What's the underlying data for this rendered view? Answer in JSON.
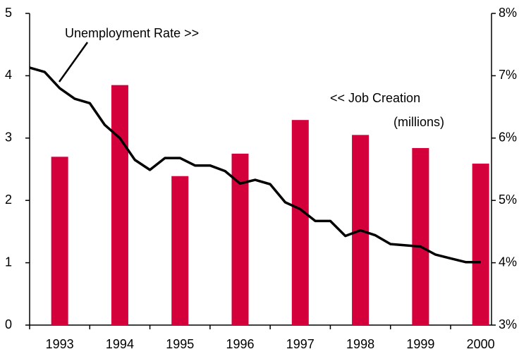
{
  "chart_data": {
    "type": "bar",
    "categories": [
      "1993",
      "1994",
      "1995",
      "1996",
      "1997",
      "1998",
      "1999",
      "2000"
    ],
    "xlim": [
      1993,
      2000.68
    ],
    "ylim": [
      0,
      5
    ],
    "yticks": [
      0,
      1,
      2,
      3,
      4,
      5
    ],
    "y2lim": [
      3,
      8
    ],
    "y2ticks": [
      {
        "value": 3,
        "label": "3%"
      },
      {
        "value": 4,
        "label": "4%"
      },
      {
        "value": 5,
        "label": "5%"
      },
      {
        "value": 6,
        "label": "6%"
      },
      {
        "value": 7,
        "label": "7%"
      },
      {
        "value": 8,
        "label": "8%"
      }
    ],
    "series": [
      {
        "type": "bar",
        "color": "#d4003c",
        "values": [
          2.7,
          3.85,
          2.39,
          2.75,
          3.29,
          3.05,
          2.84,
          2.59
        ]
      },
      {
        "type": "line",
        "axis": "y2",
        "color": "#000000",
        "x": [
          1993,
          1993.25,
          1993.5,
          1993.75,
          1994,
          1994.25,
          1994.5,
          1994.75,
          1995,
          1995.25,
          1995.5,
          1995.75,
          1996,
          1996.25,
          1996.5,
          1996.75,
          1997,
          1997.25,
          1997.5,
          1997.75,
          1998,
          1998.25,
          1998.5,
          1998.75,
          1999,
          1999.25,
          1999.5,
          1999.75,
          2000,
          2000.25,
          2000.5
        ],
        "values": [
          7.13,
          7.06,
          6.8,
          6.63,
          6.56,
          6.21,
          6.0,
          5.65,
          5.49,
          5.68,
          5.68,
          5.56,
          5.56,
          5.47,
          5.27,
          5.33,
          5.26,
          4.97,
          4.86,
          4.67,
          4.67,
          4.43,
          4.52,
          4.44,
          4.3,
          4.28,
          4.26,
          4.13,
          4.07,
          4.01,
          4.01
        ]
      }
    ],
    "annotations": [
      "Unemployment Rate   >>",
      "<<   Job Creation",
      "(millions)"
    ]
  }
}
